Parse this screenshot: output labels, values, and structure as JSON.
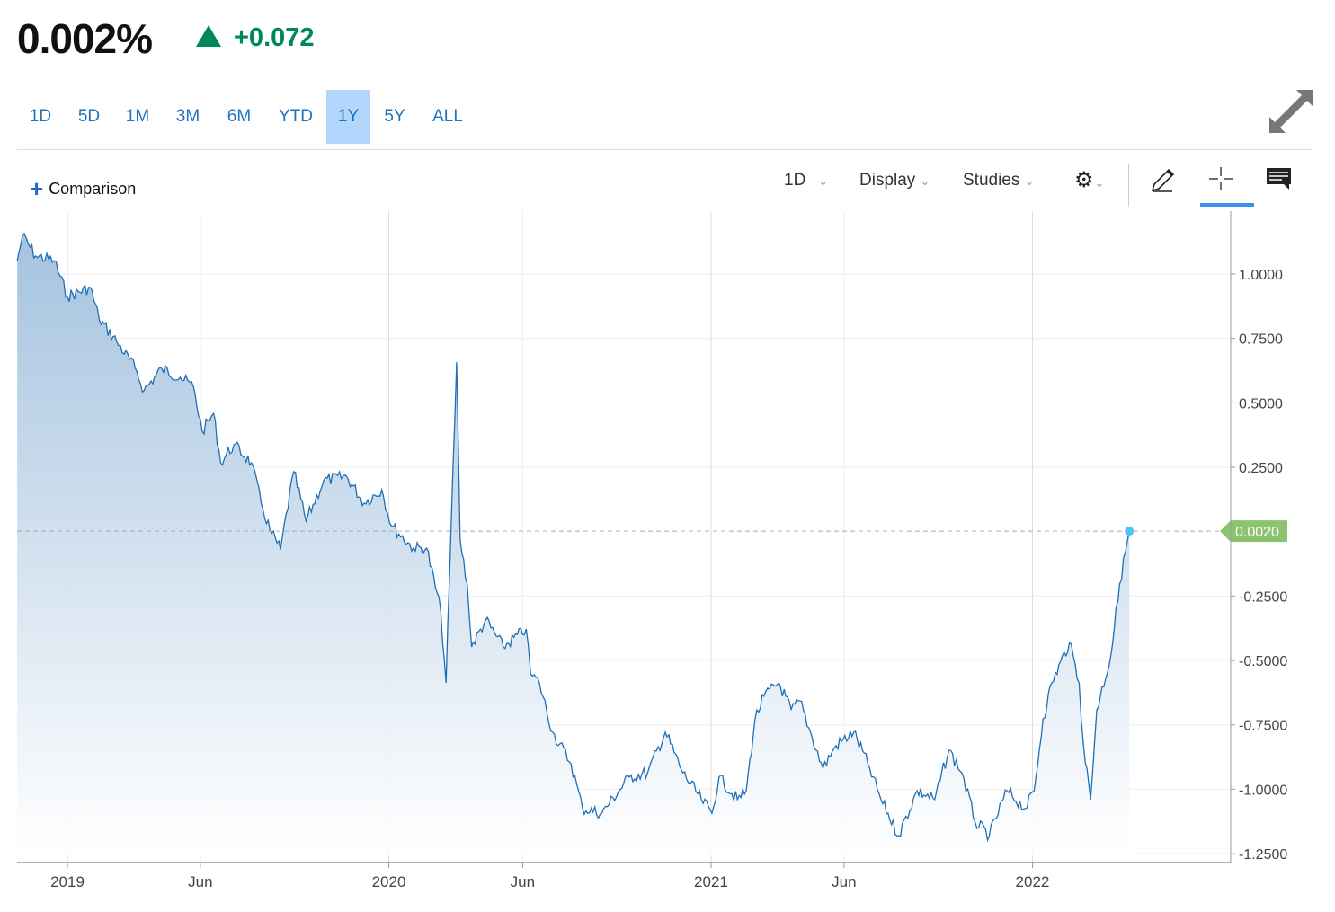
{
  "header": {
    "price": "0.002%",
    "change": "+0.072",
    "change_direction": "up",
    "up_color": "#00875a"
  },
  "ranges": [
    {
      "label": "1D"
    },
    {
      "label": "5D"
    },
    {
      "label": "1M"
    },
    {
      "label": "3M"
    },
    {
      "label": "6M"
    },
    {
      "label": "YTD"
    },
    {
      "label": "1Y",
      "active": true
    },
    {
      "label": "5Y"
    },
    {
      "label": "ALL"
    }
  ],
  "toolbar": {
    "comparison": "Comparison",
    "interval": "1D",
    "display": "Display",
    "studies": "Studies",
    "icons": [
      "settings-gear-icon",
      "pencil-draw-icon",
      "crosshair-icon",
      "comment-icon",
      "expand-icon"
    ],
    "active_tool": "crosshair"
  },
  "chart_data": {
    "type": "area",
    "line_color": "#1f6fb5",
    "last_value_label": "0.0020",
    "last_value_color": "#8dc26f",
    "ylim": [
      -1.25,
      1.2
    ],
    "yticks": [
      1.0,
      0.75,
      0.5,
      0.25,
      -0.25,
      -0.5,
      -0.75,
      -1.0,
      -1.25
    ],
    "ytick_labels": [
      "1.0000",
      "0.7500",
      "0.5000",
      "0.2500",
      "-0.2500",
      "-0.5000",
      "-0.7500",
      "-1.0000",
      "-1.2500"
    ],
    "xticks": [
      {
        "date": "2019-01-01",
        "label": "2019"
      },
      {
        "date": "2019-06-01",
        "label": "Jun"
      },
      {
        "date": "2020-01-01",
        "label": "2020"
      },
      {
        "date": "2020-06-01",
        "label": "Jun"
      },
      {
        "date": "2021-01-01",
        "label": "2021"
      },
      {
        "date": "2021-06-01",
        "label": "Jun"
      },
      {
        "date": "2022-01-01",
        "label": "2022"
      }
    ],
    "grid": true,
    "points": [
      [
        "2018-11-05",
        1.052
      ],
      [
        "2018-11-11",
        1.15
      ],
      [
        "2018-11-26",
        1.07
      ],
      [
        "2018-12-17",
        1.052
      ],
      [
        "2019-01-01",
        0.913
      ],
      [
        "2019-01-27",
        0.948
      ],
      [
        "2019-02-06",
        0.826
      ],
      [
        "2019-02-26",
        0.738
      ],
      [
        "2019-03-19",
        0.634
      ],
      [
        "2019-03-29",
        0.547
      ],
      [
        "2019-04-18",
        0.634
      ],
      [
        "2019-05-09",
        0.599
      ],
      [
        "2019-05-24",
        0.564
      ],
      [
        "2019-06-03",
        0.39
      ],
      [
        "2019-06-16",
        0.459
      ],
      [
        "2019-06-24",
        0.268
      ],
      [
        "2019-07-09",
        0.337
      ],
      [
        "2019-07-29",
        0.268
      ],
      [
        "2019-08-09",
        0.111
      ],
      [
        "2019-08-19",
        0.006
      ],
      [
        "2019-08-31",
        -0.07
      ],
      [
        "2019-09-15",
        0.233
      ],
      [
        "2019-09-29",
        0.041
      ],
      [
        "2019-10-19",
        0.198
      ],
      [
        "2019-11-14",
        0.215
      ],
      [
        "2019-12-04",
        0.111
      ],
      [
        "2019-12-24",
        0.163
      ],
      [
        "2020-01-04",
        0.023
      ],
      [
        "2020-01-29",
        -0.064
      ],
      [
        "2020-02-13",
        -0.064
      ],
      [
        "2020-02-29",
        -0.308
      ],
      [
        "2020-03-06",
        -0.587
      ],
      [
        "2020-03-10",
        -0.168
      ],
      [
        "2020-03-18",
        0.658
      ],
      [
        "2020-03-22",
        -0.029
      ],
      [
        "2020-03-30",
        -0.203
      ],
      [
        "2020-04-04",
        -0.447
      ],
      [
        "2020-04-20",
        -0.343
      ],
      [
        "2020-05-10",
        -0.447
      ],
      [
        "2020-06-05",
        -0.378
      ],
      [
        "2020-06-10",
        -0.552
      ],
      [
        "2020-06-20",
        -0.587
      ],
      [
        "2020-07-05",
        -0.779
      ],
      [
        "2020-07-26",
        -0.901
      ],
      [
        "2020-08-08",
        -1.075
      ],
      [
        "2020-08-30",
        -1.093
      ],
      [
        "2020-09-30",
        -0.953
      ],
      [
        "2020-10-21",
        -0.936
      ],
      [
        "2020-11-10",
        -0.779
      ],
      [
        "2020-11-30",
        -0.936
      ],
      [
        "2020-12-21",
        -1.04
      ],
      [
        "2021-01-02",
        -1.093
      ],
      [
        "2021-01-10",
        -0.953
      ],
      [
        "2021-01-31",
        -1.04
      ],
      [
        "2021-02-10",
        -1.006
      ],
      [
        "2021-02-20",
        -0.727
      ],
      [
        "2021-03-02",
        -0.639
      ],
      [
        "2021-03-19",
        -0.587
      ],
      [
        "2021-04-02",
        -0.692
      ],
      [
        "2021-04-12",
        -0.657
      ],
      [
        "2021-04-22",
        -0.761
      ],
      [
        "2021-05-08",
        -0.918
      ],
      [
        "2021-05-23",
        -0.831
      ],
      [
        "2021-06-12",
        -0.779
      ],
      [
        "2021-06-28",
        -0.901
      ],
      [
        "2021-07-13",
        -1.04
      ],
      [
        "2021-08-02",
        -1.18
      ],
      [
        "2021-08-23",
        -1.006
      ],
      [
        "2021-09-12",
        -1.04
      ],
      [
        "2021-09-28",
        -0.849
      ],
      [
        "2021-10-13",
        -0.936
      ],
      [
        "2021-10-28",
        -1.128
      ],
      [
        "2021-11-13",
        -1.18
      ],
      [
        "2021-12-03",
        -1.006
      ],
      [
        "2021-12-24",
        -1.075
      ],
      [
        "2022-01-03",
        -1.006
      ],
      [
        "2022-01-13",
        -0.727
      ],
      [
        "2022-01-23",
        -0.587
      ],
      [
        "2022-02-12",
        -0.43
      ],
      [
        "2022-02-23",
        -0.587
      ],
      [
        "2022-02-28",
        -0.831
      ],
      [
        "2022-03-08",
        -1.04
      ],
      [
        "2022-03-15",
        -0.692
      ],
      [
        "2022-03-31",
        -0.482
      ],
      [
        "2022-04-10",
        -0.203
      ],
      [
        "2022-04-21",
        0.002
      ]
    ]
  }
}
